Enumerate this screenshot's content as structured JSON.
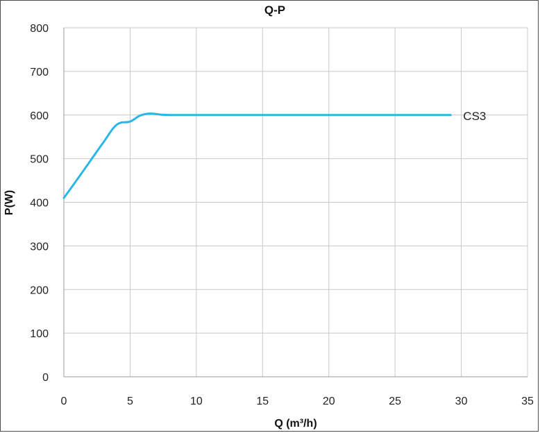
{
  "chart_data": {
    "type": "line",
    "title": "Q-P",
    "xlabel": "Q (m³/h)",
    "ylabel": "P(W)",
    "xlim": [
      0,
      35
    ],
    "ylim": [
      0,
      800
    ],
    "xticks": [
      0,
      5,
      10,
      15,
      20,
      25,
      30,
      35
    ],
    "yticks": [
      0,
      100,
      200,
      300,
      400,
      500,
      600,
      700,
      800
    ],
    "grid": true,
    "series": [
      {
        "name": "CS3",
        "color": "#29b6e8",
        "x": [
          0,
          1,
          2,
          3,
          4,
          5,
          5.7,
          6.3,
          6.8,
          7.3,
          8,
          10,
          15,
          20,
          25,
          29.2
        ],
        "y": [
          410,
          452,
          495,
          538,
          578,
          585,
          598,
          603,
          603,
          601,
          600,
          600,
          600,
          600,
          600,
          600
        ]
      }
    ]
  }
}
